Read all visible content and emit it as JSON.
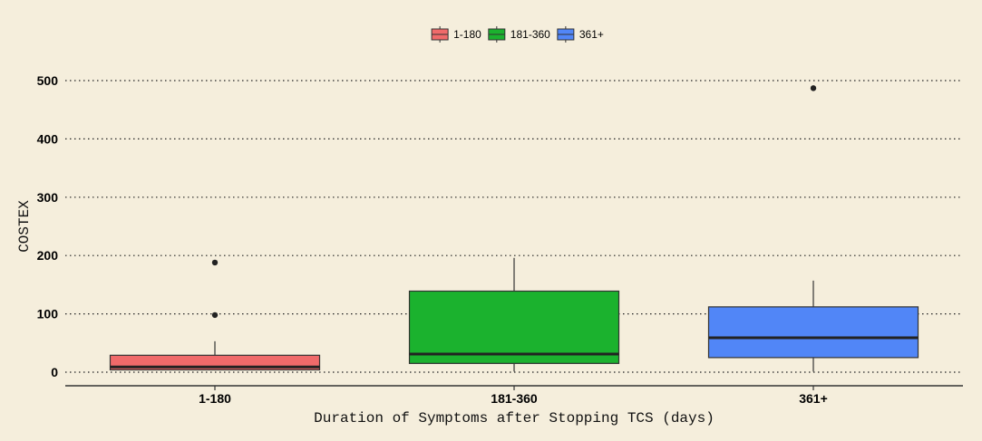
{
  "background": "#F5EEDC",
  "chart_data": {
    "type": "boxplot",
    "xlabel": "Duration of Symptoms after Stopping TCS (days)",
    "ylabel": "COSTEX",
    "ylim": [
      -20,
      535
    ],
    "y_ticks": [
      0,
      100,
      200,
      300,
      400,
      500
    ],
    "grid": "horizontal dotted",
    "legend_position": "top",
    "categories": [
      "1-180",
      "181-360",
      "361+"
    ],
    "series": [
      {
        "name": "1-180",
        "color": "#F06A6A",
        "whisker_low": 3,
        "q1": 4,
        "median": 9,
        "q3": 29,
        "whisker_high": 53,
        "outliers": [
          98,
          188
        ]
      },
      {
        "name": "181-360",
        "color": "#1BB22E",
        "whisker_low": 1,
        "q1": 15,
        "median": 31,
        "q3": 139,
        "whisker_high": 196,
        "outliers": []
      },
      {
        "name": "361+",
        "color": "#5186F7",
        "whisker_low": 1,
        "q1": 25,
        "median": 59,
        "q3": 112,
        "whisker_high": 157,
        "outliers": [
          487
        ]
      }
    ]
  }
}
